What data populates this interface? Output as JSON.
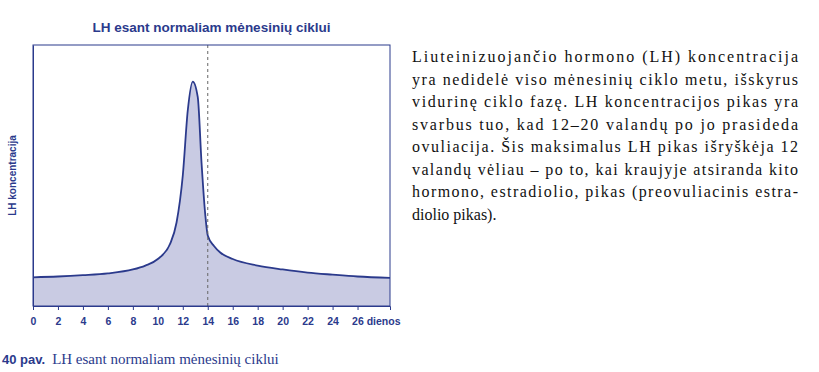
{
  "chart_data": {
    "type": "area",
    "title": "LH esant normaliam mėnesinių ciklui",
    "y_label": "LH koncentracija",
    "x": [
      0,
      2,
      4,
      6,
      8,
      9,
      10,
      11,
      11.5,
      12,
      12.4,
      12.8,
      13.2,
      13.5,
      13.8,
      14,
      14.5,
      15,
      16,
      18,
      20,
      22,
      24,
      26,
      28.6
    ],
    "values": [
      11,
      11.3,
      11.8,
      12.5,
      14,
      15.5,
      18,
      24,
      32,
      50,
      75,
      86,
      80,
      55,
      35,
      27,
      23,
      20.5,
      18,
      15.5,
      14,
      12.8,
      12,
      11.3,
      10.8
    ],
    "color": "#c9cbe3",
    "xlim": [
      0,
      28.6
    ],
    "ylim": [
      0,
      100
    ],
    "xticks": [
      0,
      2,
      4,
      6,
      8,
      10,
      12,
      14,
      16,
      18,
      20,
      22,
      24,
      {
        "value": 26,
        "label": "26 dienos"
      }
    ],
    "yticks": [],
    "tick_labels": "x",
    "vlines": [
      14
    ]
  },
  "text": {
    "lines": [
      "Liuteinizuojančio hormono (LH) koncentracija",
      "yra nedidelė viso mėnesinių ciklo metu, išskyrus",
      "vidurinę ciklo fazę. LH koncentracijos pikas yra",
      "svarbus tuo, kad 12–20 valandų po jo prasideda",
      "ovuliacija. Šis maksimalus LH pikas išryškėja 12",
      "valandų vėliau – po to, kai kraujyje atsiranda kito",
      "hormono, estradiolio, pikas (preovuliacinis estra-",
      "diolio pikas)."
    ]
  },
  "caption": {
    "label": "40 pav.",
    "text": "LH esant normaliam mėnesinių ciklui"
  }
}
